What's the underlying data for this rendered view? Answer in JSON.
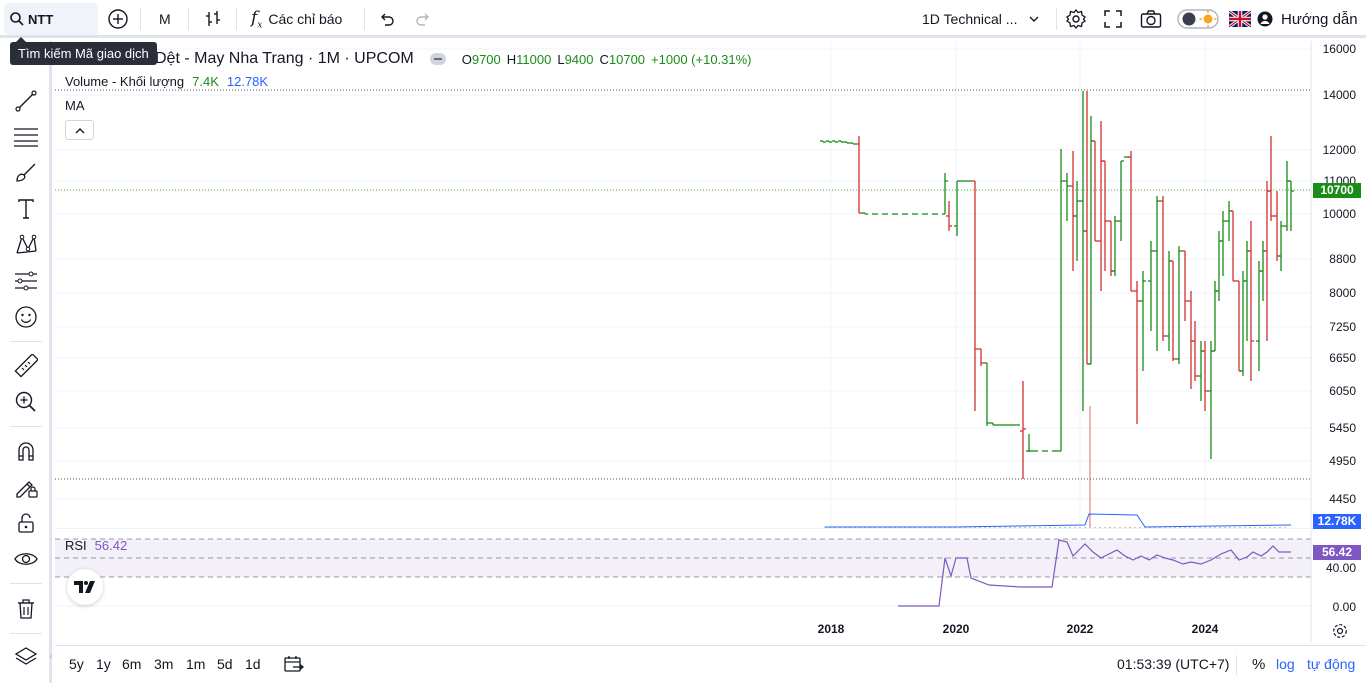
{
  "toolbar": {
    "symbol": "NTT",
    "interval": "M",
    "indicators_label": "Các chỉ báo",
    "layout_name": "1D Technical ...",
    "help_label": "Hướng dẫn"
  },
  "tooltip": "Tìm kiếm Mã giao dịch",
  "legend": {
    "title": "Dệt - May Nha Trang · 1M · UPCOM",
    "o_label": "O",
    "o": "9700",
    "h_label": "H",
    "h": "11000",
    "l_label": "L",
    "l": "9400",
    "c_label": "C",
    "c": "10700",
    "change": "+1000 (+10.31%)",
    "volume_label": "Volume - Khối lượng",
    "volume_value": "7.4K",
    "volume_ma": "12.78K",
    "ma_label": "MA"
  },
  "price_axis": [
    "16000",
    "14000",
    "12000",
    "11000",
    "10000",
    "8800",
    "8000",
    "7250",
    "6650",
    "6050",
    "5450",
    "4950",
    "4450"
  ],
  "tags": {
    "last_price": "10700",
    "volume_ma": "12.78K",
    "rsi": "56.42"
  },
  "rsi": {
    "label": "RSI",
    "value": "56.42",
    "axis": [
      "40.00",
      "0.00"
    ]
  },
  "time_axis": [
    "2018",
    "2020",
    "2022",
    "2024"
  ],
  "bottom": {
    "ranges": [
      "5y",
      "1y",
      "6m",
      "3m",
      "1m",
      "5d",
      "1d"
    ],
    "clock": "01:53:39 (UTC+7)",
    "percent": "%",
    "log": "log",
    "auto": "tự động"
  },
  "colors": {
    "up": "#089981",
    "up_bar": "#1a8c1a",
    "down": "#d32f2f",
    "rsi_line": "#7e57c2",
    "volume_ma_line": "#2962ff",
    "accent": "#2962ff"
  }
}
